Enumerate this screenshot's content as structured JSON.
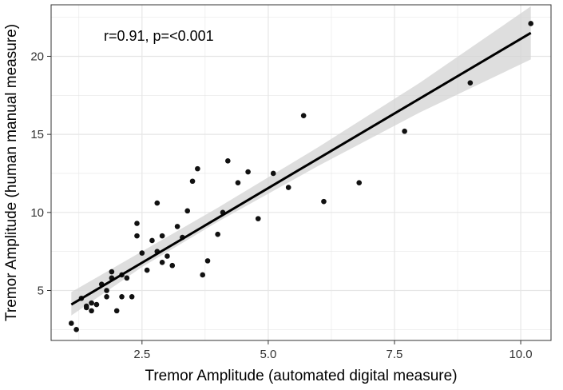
{
  "chart_data": {
    "type": "scatter",
    "title": "",
    "xlabel": "Tremor Amplitude (automated digital measure)",
    "ylabel": "Tremor Amplitude (human manual measure)",
    "annotation": "r=0.91, p=<0.001",
    "xlim": [
      0.7,
      10.6
    ],
    "ylim": [
      1.8,
      23.3
    ],
    "x_ticks": [
      2.5,
      5.0,
      7.5,
      10.0
    ],
    "x_tick_labels": [
      "2.5",
      "5.0",
      "7.5",
      "10.0"
    ],
    "y_ticks": [
      5,
      10,
      15,
      20
    ],
    "y_tick_labels": [
      "5",
      "10",
      "15",
      "20"
    ],
    "grid": true,
    "background": "#ffffff",
    "colors": {
      "grid": "#e6e6e6",
      "panel_border": "#333333",
      "points": "#111111",
      "fit_line": "#000000",
      "confidence_band": "#d3d3d3"
    },
    "points": [
      {
        "x": 1.1,
        "y": 2.9
      },
      {
        "x": 1.2,
        "y": 2.5
      },
      {
        "x": 1.3,
        "y": 4.5
      },
      {
        "x": 1.4,
        "y": 4.0
      },
      {
        "x": 1.4,
        "y": 3.9
      },
      {
        "x": 1.5,
        "y": 4.2
      },
      {
        "x": 1.5,
        "y": 3.7
      },
      {
        "x": 1.6,
        "y": 4.1
      },
      {
        "x": 1.7,
        "y": 5.4
      },
      {
        "x": 1.8,
        "y": 4.6
      },
      {
        "x": 1.8,
        "y": 5.0
      },
      {
        "x": 1.9,
        "y": 5.8
      },
      {
        "x": 1.9,
        "y": 6.2
      },
      {
        "x": 2.0,
        "y": 3.7
      },
      {
        "x": 2.1,
        "y": 4.6
      },
      {
        "x": 2.1,
        "y": 6.0
      },
      {
        "x": 2.2,
        "y": 5.8
      },
      {
        "x": 2.3,
        "y": 4.6
      },
      {
        "x": 2.4,
        "y": 8.5
      },
      {
        "x": 2.4,
        "y": 9.3
      },
      {
        "x": 2.5,
        "y": 7.4
      },
      {
        "x": 2.6,
        "y": 6.3
      },
      {
        "x": 2.7,
        "y": 8.2
      },
      {
        "x": 2.8,
        "y": 10.6
      },
      {
        "x": 2.8,
        "y": 7.5
      },
      {
        "x": 2.9,
        "y": 8.5
      },
      {
        "x": 2.9,
        "y": 6.8
      },
      {
        "x": 3.0,
        "y": 7.2
      },
      {
        "x": 3.1,
        "y": 6.6
      },
      {
        "x": 3.2,
        "y": 9.1
      },
      {
        "x": 3.3,
        "y": 8.4
      },
      {
        "x": 3.4,
        "y": 10.1
      },
      {
        "x": 3.5,
        "y": 12.0
      },
      {
        "x": 3.6,
        "y": 12.8
      },
      {
        "x": 3.7,
        "y": 6.0
      },
      {
        "x": 3.8,
        "y": 6.9
      },
      {
        "x": 4.0,
        "y": 8.6
      },
      {
        "x": 4.1,
        "y": 10.0
      },
      {
        "x": 4.2,
        "y": 13.3
      },
      {
        "x": 4.4,
        "y": 11.9
      },
      {
        "x": 4.6,
        "y": 12.6
      },
      {
        "x": 4.8,
        "y": 9.6
      },
      {
        "x": 5.1,
        "y": 12.5
      },
      {
        "x": 5.4,
        "y": 11.6
      },
      {
        "x": 5.7,
        "y": 16.2
      },
      {
        "x": 6.1,
        "y": 10.7
      },
      {
        "x": 6.8,
        "y": 11.9
      },
      {
        "x": 7.7,
        "y": 15.2
      },
      {
        "x": 9.0,
        "y": 18.3
      },
      {
        "x": 10.2,
        "y": 22.1
      }
    ],
    "fit_line": {
      "x": [
        1.1,
        10.2
      ],
      "y": [
        4.1,
        21.5
      ]
    },
    "confidence_band": {
      "x": [
        1.1,
        2.5,
        4.0,
        6.0,
        8.0,
        10.2
      ],
      "lower": [
        3.4,
        6.5,
        9.4,
        13.0,
        16.4,
        19.8
      ],
      "upper": [
        4.9,
        7.5,
        10.3,
        14.2,
        18.3,
        23.2
      ]
    }
  }
}
